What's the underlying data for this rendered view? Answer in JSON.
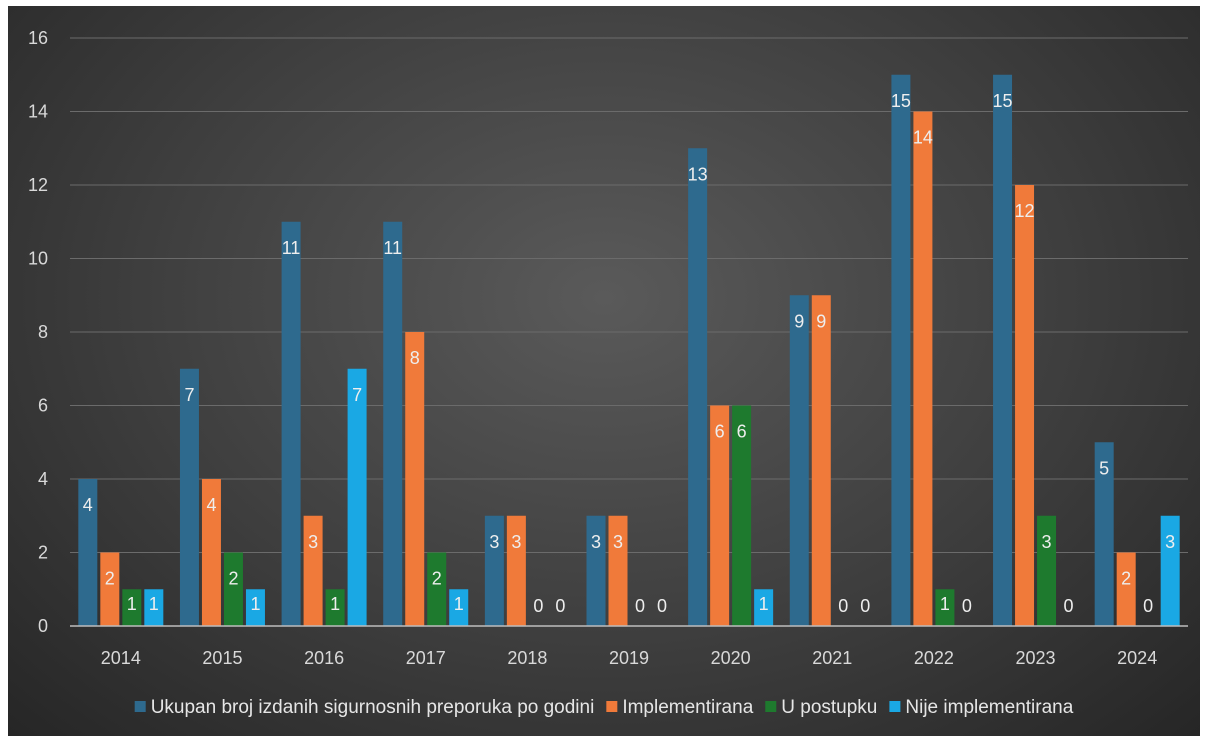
{
  "chart_data": {
    "type": "bar",
    "categories": [
      "2014",
      "2015",
      "2016",
      "2017",
      "2018",
      "2019",
      "2020",
      "2021",
      "2022",
      "2023",
      "2024"
    ],
    "series": [
      {
        "name": "Ukupan broj izdanih sigurnosnih preporuka po godini",
        "color": "#2e6a8e",
        "values": [
          4,
          7,
          11,
          11,
          3,
          3,
          13,
          9,
          15,
          15,
          5
        ]
      },
      {
        "name": "Implementirana",
        "color": "#f07a3a",
        "values": [
          2,
          4,
          3,
          8,
          3,
          3,
          6,
          9,
          14,
          12,
          2
        ]
      },
      {
        "name": "U postupku",
        "color": "#1e7a2e",
        "values": [
          1,
          2,
          1,
          2,
          0,
          0,
          6,
          0,
          1,
          3,
          0
        ]
      },
      {
        "name": "Nije implementirana",
        "color": "#1aa8e4",
        "values": [
          1,
          1,
          7,
          1,
          0,
          0,
          1,
          0,
          0,
          0,
          3
        ]
      }
    ],
    "ylim": [
      0,
      16
    ],
    "yticks": [
      0,
      2,
      4,
      6,
      8,
      10,
      12,
      14,
      16
    ],
    "grid": true,
    "legend_position": "bottom",
    "title": "",
    "xlabel": "",
    "ylabel": ""
  }
}
